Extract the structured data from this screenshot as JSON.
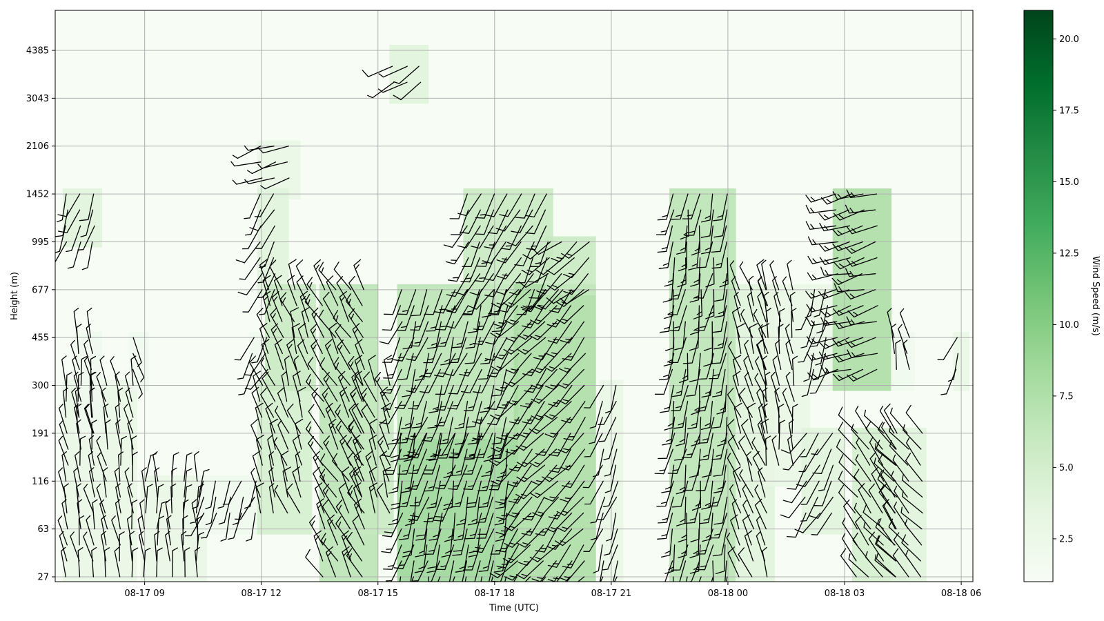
{
  "chart_data": {
    "type": "heatmap",
    "subtype": "wind profile: speed shading with wind barbs",
    "xlabel": "Time (UTC)",
    "ylabel": "Height (m)",
    "x_ticks": [
      "08-17 09",
      "08-17 12",
      "08-17 15",
      "08-17 18",
      "08-17 21",
      "08-18 00",
      "08-18 03",
      "08-18 06"
    ],
    "x_range_hours": [
      6.7,
      30.3
    ],
    "y_ticks": [
      "27",
      "63",
      "116",
      "191",
      "300",
      "455",
      "677",
      "995",
      "1452",
      "2106",
      "3043",
      "4385"
    ],
    "y_scale": "categorical height levels (non-linear)",
    "grid": true,
    "colorbar": {
      "label": "Wind Speed (m/s)",
      "colormap": "Greens",
      "range": [
        1,
        21
      ],
      "ticks": [
        "2.5",
        "5.0",
        "7.5",
        "10.0",
        "12.5",
        "15.0",
        "17.5",
        "20.0"
      ],
      "colors": [
        "#f7fcf5",
        "#e5f5e0",
        "#c7e9c0",
        "#a1d99b",
        "#74c476",
        "#41ab5d",
        "#238b45",
        "#006d2c",
        "#00441b"
      ]
    },
    "wind_regions": [
      {
        "t0": 7.0,
        "t1": 8.7,
        "z0": 27,
        "z1": 300,
        "speed": 3,
        "dir": 350
      },
      {
        "t0": 7.0,
        "t1": 7.8,
        "z0": 995,
        "z1": 1452,
        "speed": 4,
        "dir": 200
      },
      {
        "t0": 7.3,
        "t1": 7.8,
        "z0": 191,
        "z1": 455,
        "speed": 2,
        "dir": 350
      },
      {
        "t0": 8.7,
        "t1": 9.0,
        "z0": 300,
        "z1": 455,
        "speed": 2,
        "dir": 160
      },
      {
        "t0": 9.0,
        "t1": 10.5,
        "z0": 27,
        "z1": 116,
        "speed": 3,
        "dir": 0
      },
      {
        "t0": 10.5,
        "t1": 11.9,
        "z0": 63,
        "z1": 116,
        "speed": 2,
        "dir": 200
      },
      {
        "t0": 11.8,
        "t1": 12.2,
        "z0": 300,
        "z1": 455,
        "speed": 2,
        "dir": 210
      },
      {
        "t0": 12.0,
        "t1": 12.9,
        "z0": 1452,
        "z1": 2106,
        "speed": 3,
        "dir": 250
      },
      {
        "t0": 12.0,
        "t1": 12.6,
        "z0": 677,
        "z1": 1452,
        "speed": 4,
        "dir": 210
      },
      {
        "t0": 12.0,
        "t1": 13.2,
        "z0": 63,
        "z1": 300,
        "speed": 5,
        "dir": 340
      },
      {
        "t0": 12.2,
        "t1": 13.3,
        "z0": 300,
        "z1": 677,
        "speed": 6,
        "dir": 340
      },
      {
        "t0": 13.6,
        "t1": 14.9,
        "z0": 27,
        "z1": 677,
        "speed": 7,
        "dir": 330
      },
      {
        "t0": 14.6,
        "t1": 15.3,
        "z0": 63,
        "z1": 300,
        "speed": 6,
        "dir": 340
      },
      {
        "t0": 15.4,
        "t1": 16.2,
        "z0": 3043,
        "z1": 4385,
        "speed": 4,
        "dir": 240
      },
      {
        "t0": 15.6,
        "t1": 18.5,
        "z0": 27,
        "z1": 191,
        "speed": 9,
        "dir": 195
      },
      {
        "t0": 15.6,
        "t1": 18.5,
        "z0": 191,
        "z1": 677,
        "speed": 7,
        "dir": 200
      },
      {
        "t0": 17.3,
        "t1": 19.4,
        "z0": 677,
        "z1": 1452,
        "speed": 6,
        "dir": 210
      },
      {
        "t0": 18.6,
        "t1": 20.5,
        "z0": 27,
        "z1": 677,
        "speed": 8,
        "dir": 220
      },
      {
        "t0": 19.4,
        "t1": 20.5,
        "z0": 677,
        "z1": 995,
        "speed": 6,
        "dir": 230
      },
      {
        "t0": 20.8,
        "t1": 21.2,
        "z0": 27,
        "z1": 300,
        "speed": 3,
        "dir": 200
      },
      {
        "t0": 22.6,
        "t1": 24.1,
        "z0": 27,
        "z1": 1452,
        "speed": 7,
        "dir": 190
      },
      {
        "t0": 24.3,
        "t1": 25.1,
        "z0": 27,
        "z1": 677,
        "speed": 4,
        "dir": 340
      },
      {
        "t0": 25.0,
        "t1": 26.0,
        "z0": 116,
        "z1": 677,
        "speed": 3,
        "dir": 350
      },
      {
        "t0": 26.0,
        "t1": 26.9,
        "z0": 63,
        "z1": 191,
        "speed": 4,
        "dir": 210
      },
      {
        "t0": 26.2,
        "t1": 26.7,
        "z0": 300,
        "z1": 677,
        "speed": 3,
        "dir": 200
      },
      {
        "t0": 26.8,
        "t1": 28.1,
        "z0": 300,
        "z1": 1452,
        "speed": 8,
        "dir": 255
      },
      {
        "t0": 27.3,
        "t1": 28.5,
        "z0": 27,
        "z1": 191,
        "speed": 5,
        "dir": 320
      },
      {
        "t0": 28.3,
        "t1": 29.0,
        "z0": 27,
        "z1": 191,
        "speed": 4,
        "dir": 320
      },
      {
        "t0": 28.3,
        "t1": 28.7,
        "z0": 300,
        "z1": 455,
        "speed": 2,
        "dir": 350
      },
      {
        "t0": 29.9,
        "t1": 30.1,
        "z0": 300,
        "z1": 455,
        "speed": 3,
        "dir": 200
      }
    ]
  }
}
